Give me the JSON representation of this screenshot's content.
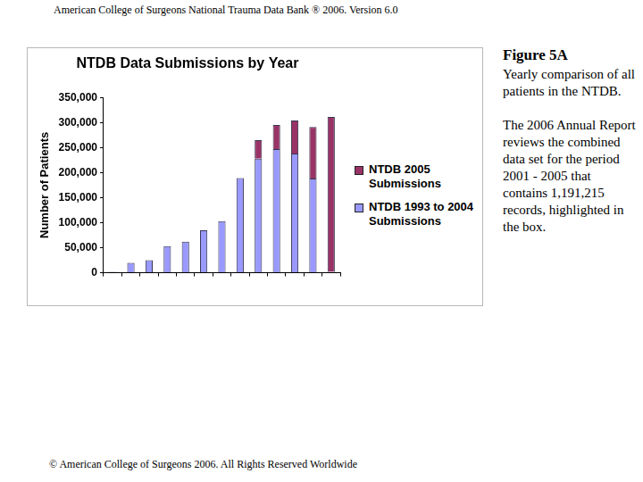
{
  "page": {
    "header": "American College of Surgeons National Trauma Data Bank ® 2006. Version 6.0",
    "figure_label": "Figure 5A",
    "caption": "Yearly comparison of all patients in the NTDB.",
    "note": "The 2006 Annual Report reviews the combined data set for the period 2001 - 2005 that contains 1,191,215 records, highlighted in the box.",
    "footer": "© American College of Surgeons 2006. All Rights Reserved Worldwide"
  },
  "chart_data": {
    "type": "bar",
    "title": "NTDB Data Submissions by Year",
    "y_label": "Number of Patients",
    "categories": [
      null,
      null,
      null,
      null,
      null,
      null,
      null,
      null,
      null,
      null,
      null,
      null,
      null
    ],
    "series": [
      {
        "name": "NTDB 1993 to 2004 Submissions",
        "color": "#9999ff",
        "values": [
          2000,
          20000,
          25000,
          53000,
          62000,
          85000,
          103000,
          189000,
          228000,
          247000,
          238000,
          188000,
          2000
        ]
      },
      {
        "name": "NTDB 2005 Submissions",
        "color": "#993366",
        "values": [
          0,
          0,
          0,
          0,
          0,
          0,
          0,
          0,
          37000,
          48000,
          66000,
          103000,
          309000
        ]
      }
    ],
    "stacked": true,
    "grid": false,
    "legend": "right",
    "ylim": [
      0,
      350000
    ],
    "yticks": [
      0,
      {
        "value": 50000,
        "label": "50,000"
      },
      {
        "value": 100000,
        "label": "100,000"
      },
      {
        "value": 150000,
        "label": "150,000"
      },
      {
        "value": 200000,
        "label": "200,000"
      },
      {
        "value": 250000,
        "label": "250,000"
      },
      {
        "value": 300000,
        "label": "300,000"
      },
      {
        "value": 350000,
        "label": "350,000"
      }
    ]
  }
}
